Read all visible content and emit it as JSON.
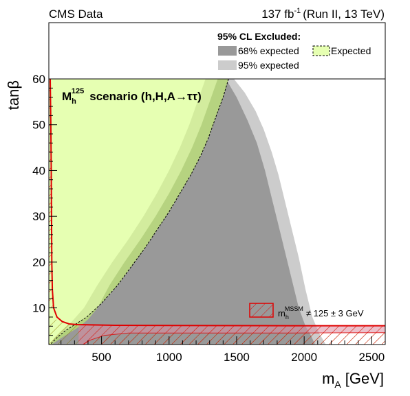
{
  "header": {
    "left_label": "CMS Data",
    "lumi_value": "137 fb",
    "lumi_exponent": "-1",
    "run_label": "(Run II, 13 TeV)"
  },
  "legend": {
    "title": "95% CL Excluded:",
    "entries": [
      {
        "label": "68% expected",
        "color": "#999999"
      },
      {
        "label": "95% expected",
        "color": "#cccccc"
      },
      {
        "label": "Expected",
        "color": "#e6ffb2",
        "border": "dashed"
      }
    ]
  },
  "scenario": {
    "symbol": "M",
    "subscript": "h",
    "superscript": "125",
    "text": "scenario (h,H,A→ττ)"
  },
  "mhLabel": {
    "symbol": "m",
    "subscript": "h",
    "superscript": "MSSM",
    "text": "≠ 125 ± 3 GeV"
  },
  "colors": {
    "expected_fill": "#e6ffb2",
    "band68": "#999999",
    "band95": "#cccccc",
    "hatch": "#e00000",
    "hatch_low": "#c8b400"
  },
  "chart_data": {
    "type": "area",
    "title": "",
    "xlabel_symbol": "m",
    "xlabel_sub": "A",
    "xlabel_unit": "[GeV]",
    "ylabel": "tanβ",
    "xlim": [
      110,
      2600
    ],
    "ylim": [
      2,
      60
    ],
    "xticks": [
      500,
      1000,
      1500,
      2000,
      2500
    ],
    "yticks": [
      10,
      20,
      30,
      40,
      50,
      60
    ],
    "grid": false,
    "legend_position": "top",
    "series": [
      {
        "name": "95% expected",
        "kind": "band",
        "upper": [
          [
            110,
            60
          ],
          [
            1480,
            60
          ],
          [
            1560,
            57
          ],
          [
            1640,
            53
          ],
          [
            1700,
            49
          ],
          [
            1760,
            44
          ],
          [
            1810,
            39
          ],
          [
            1860,
            33
          ],
          [
            1910,
            27
          ],
          [
            1960,
            21
          ],
          [
            2010,
            14
          ],
          [
            2060,
            8
          ],
          [
            2110,
            4.5
          ],
          [
            2140,
            3
          ],
          [
            2160,
            2
          ]
        ],
        "lower": [
          [
            110,
            60
          ],
          [
            1270,
            60
          ],
          [
            1210,
            55
          ],
          [
            1150,
            50
          ],
          [
            1080,
            45
          ],
          [
            1000,
            40
          ],
          [
            910,
            35
          ],
          [
            810,
            30
          ],
          [
            700,
            25
          ],
          [
            580,
            20
          ],
          [
            470,
            15
          ],
          [
            370,
            10
          ],
          [
            280,
            7
          ],
          [
            200,
            5
          ],
          [
            150,
            3.5
          ],
          [
            120,
            2
          ]
        ]
      },
      {
        "name": "68% expected",
        "kind": "band",
        "upper": [
          [
            110,
            60
          ],
          [
            1420,
            60
          ],
          [
            1500,
            56
          ],
          [
            1580,
            51
          ],
          [
            1650,
            46
          ],
          [
            1710,
            40
          ],
          [
            1760,
            34
          ],
          [
            1810,
            28
          ],
          [
            1860,
            22
          ],
          [
            1910,
            16
          ],
          [
            1960,
            10
          ],
          [
            2010,
            6
          ],
          [
            2050,
            4
          ],
          [
            2080,
            2
          ]
        ],
        "lower": [
          [
            110,
            60
          ],
          [
            1360,
            60
          ],
          [
            1300,
            55
          ],
          [
            1240,
            50
          ],
          [
            1170,
            45
          ],
          [
            1090,
            40
          ],
          [
            1000,
            35
          ],
          [
            900,
            30
          ],
          [
            790,
            25
          ],
          [
            670,
            20
          ],
          [
            560,
            15
          ],
          [
            470,
            10
          ],
          [
            400,
            7.5
          ],
          [
            340,
            6
          ],
          [
            260,
            4.5
          ],
          [
            180,
            3
          ],
          [
            130,
            2
          ]
        ]
      },
      {
        "name": "Expected",
        "kind": "line",
        "points": [
          [
            110,
            60
          ],
          [
            1440,
            60
          ],
          [
            1400,
            56
          ],
          [
            1350,
            52
          ],
          [
            1290,
            47
          ],
          [
            1230,
            43
          ],
          [
            1160,
            39
          ],
          [
            1080,
            35
          ],
          [
            1000,
            31
          ],
          [
            910,
            27
          ],
          [
            820,
            23
          ],
          [
            720,
            19
          ],
          [
            620,
            15
          ],
          [
            500,
            11
          ],
          [
            390,
            8
          ],
          [
            300,
            6.3
          ],
          [
            230,
            5
          ],
          [
            170,
            3.5
          ],
          [
            120,
            2
          ]
        ]
      },
      {
        "name": "m_h^MSSM ≠ 125 ± 3 GeV",
        "kind": "hatched_region",
        "boundary": [
          [
            120,
            60
          ],
          [
            125,
            50
          ],
          [
            128,
            40
          ],
          [
            130,
            30
          ],
          [
            132,
            20
          ],
          [
            136,
            14
          ],
          [
            145,
            10
          ],
          [
            170,
            8
          ],
          [
            210,
            7
          ],
          [
            260,
            6.5
          ],
          [
            320,
            6.35
          ],
          [
            600,
            6.2
          ],
          [
            1900,
            6.1
          ],
          [
            2600,
            6.1
          ]
        ],
        "lower_boundary": [
          [
            360,
            2
          ],
          [
            420,
            3
          ],
          [
            520,
            4
          ],
          [
            700,
            4.5
          ],
          [
            1900,
            4.5
          ],
          [
            2600,
            4.6
          ]
        ]
      }
    ]
  }
}
